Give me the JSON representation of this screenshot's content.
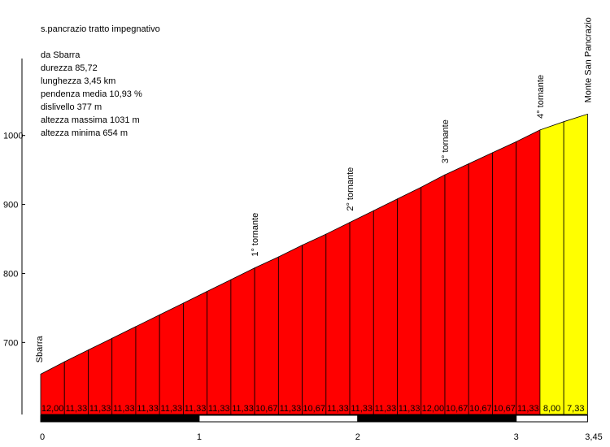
{
  "info": {
    "title": "s.pancrazio tratto impegnativo",
    "lines": [
      "da Sbarra",
      "durezza 85,72",
      "lunghezza 3,45 km",
      "pendenza media 10,93 %",
      "dislivello 377 m",
      "altezza massima 1031 m",
      "altezza minima 654 m"
    ]
  },
  "chart_data": {
    "type": "area",
    "title": "s.pancrazio tratto impegnativo",
    "xlabel": "",
    "ylabel": "",
    "x_ticks": [
      "0",
      "1",
      "2",
      "3",
      "3,45"
    ],
    "y_ticks": [
      700,
      800,
      900,
      1000
    ],
    "ylim": [
      600,
      1100
    ],
    "xlim": [
      0,
      3.45
    ],
    "segment_length_km": 0.15,
    "segments": [
      {
        "grade": "12,00",
        "color": "#ff0000"
      },
      {
        "grade": "11,33",
        "color": "#ff0000"
      },
      {
        "grade": "11,33",
        "color": "#ff0000"
      },
      {
        "grade": "11,33",
        "color": "#ff0000"
      },
      {
        "grade": "11,33",
        "color": "#ff0000"
      },
      {
        "grade": "11,33",
        "color": "#ff0000"
      },
      {
        "grade": "11,33",
        "color": "#ff0000"
      },
      {
        "grade": "11,33",
        "color": "#ff0000"
      },
      {
        "grade": "11,33",
        "color": "#ff0000"
      },
      {
        "grade": "10,67",
        "color": "#ff0000"
      },
      {
        "grade": "11,33",
        "color": "#ff0000"
      },
      {
        "grade": "10,67",
        "color": "#ff0000"
      },
      {
        "grade": "11,33",
        "color": "#ff0000"
      },
      {
        "grade": "11,33",
        "color": "#ff0000"
      },
      {
        "grade": "11,33",
        "color": "#ff0000"
      },
      {
        "grade": "11,33",
        "color": "#ff0000"
      },
      {
        "grade": "12,00",
        "color": "#ff0000"
      },
      {
        "grade": "10,67",
        "color": "#ff0000"
      },
      {
        "grade": "10,67",
        "color": "#ff0000"
      },
      {
        "grade": "10,67",
        "color": "#ff0000"
      },
      {
        "grade": "11,33",
        "color": "#ff0000"
      },
      {
        "grade": "8,00",
        "color": "#ffff00"
      },
      {
        "grade": "7,33",
        "color": "#ffff00"
      }
    ],
    "altitude": [
      654,
      672,
      689,
      706,
      723,
      740,
      757,
      774,
      791,
      808,
      824,
      841,
      857,
      874,
      891,
      908,
      925,
      943,
      959,
      975,
      991,
      1008,
      1020,
      1031
    ],
    "annotations": [
      {
        "label": "Sbarra",
        "x": 0.0
      },
      {
        "label": "1° tornante",
        "x": 1.35
      },
      {
        "label": "2° tornante",
        "x": 1.95
      },
      {
        "label": "3° tornante",
        "x": 2.55
      },
      {
        "label": "4° tornante",
        "x": 3.15
      },
      {
        "label": "Monte San Pancrazio",
        "x": 3.45
      }
    ],
    "colors": {
      "steep": "#ff0000",
      "moderate": "#ffff00",
      "axis_bar": "#000000"
    }
  }
}
